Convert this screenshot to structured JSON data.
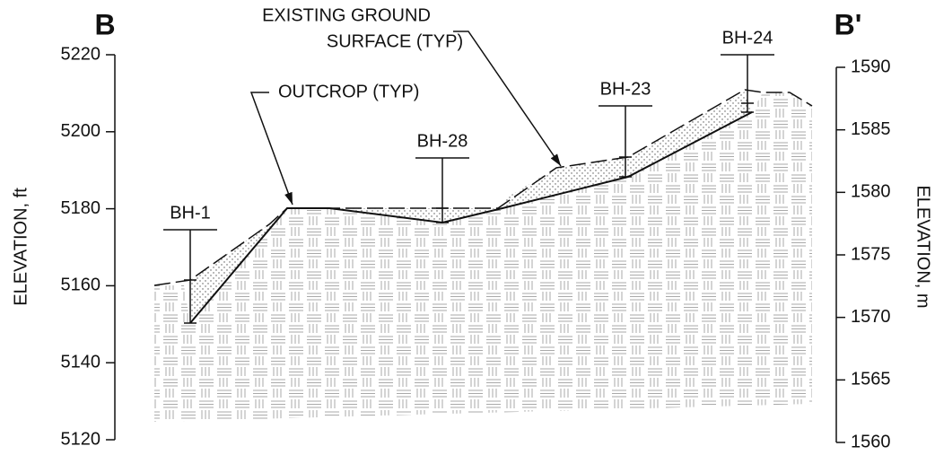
{
  "section": {
    "start_label": "B",
    "end_label": "B'"
  },
  "left_axis": {
    "label": "ELEVATION, ft",
    "ticks": [
      5220,
      5200,
      5180,
      5160,
      5140,
      5120
    ]
  },
  "right_axis": {
    "label": "ELEVATION, m",
    "ticks": [
      1590,
      1585,
      1580,
      1575,
      1570,
      1565,
      1560
    ]
  },
  "boreholes": [
    {
      "name": "BH-1"
    },
    {
      "name": "BH-28"
    },
    {
      "name": "BH-23"
    },
    {
      "name": "BH-24"
    }
  ],
  "annotations": {
    "existing_ground": [
      "EXISTING GROUND",
      "SURFACE (TYP)"
    ],
    "outcrop": "OUTCROP (TYP)"
  }
}
